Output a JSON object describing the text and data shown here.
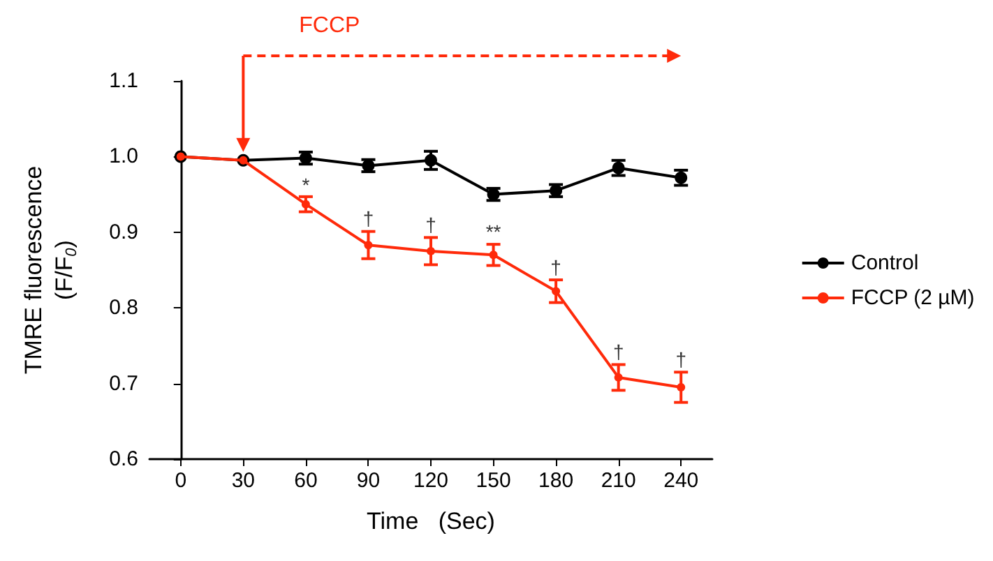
{
  "chart_data": {
    "type": "line",
    "xlabel": "Time   (Sec)",
    "ylabel": "TMRE fluorescence\n(F/F$_{0}$)",
    "x": [
      0,
      30,
      60,
      90,
      120,
      150,
      180,
      210,
      240
    ],
    "series": [
      {
        "name": "Control",
        "color": "#000000",
        "values": [
          1.0,
          0.995,
          0.998,
          0.988,
          0.995,
          0.95,
          0.955,
          0.985,
          0.972
        ],
        "errors": [
          null,
          null,
          0.008,
          0.008,
          0.012,
          0.008,
          0.008,
          0.01,
          0.01
        ]
      },
      {
        "name": "FCCP (2 µM)",
        "color": "#ff2a0a",
        "values": [
          1.0,
          0.995,
          0.937,
          0.883,
          0.875,
          0.87,
          0.822,
          0.708,
          0.695
        ],
        "errors": [
          null,
          null,
          0.01,
          0.018,
          0.018,
          0.014,
          0.015,
          0.017,
          0.02
        ]
      }
    ],
    "xlim": [
      -15,
      255
    ],
    "xticks": [
      0,
      30,
      60,
      90,
      120,
      150,
      180,
      210,
      240
    ],
    "ylim": [
      0.6,
      1.1
    ],
    "yticks": [
      0.6,
      0.7,
      0.8,
      0.9,
      {
        "value": 1,
        "label": "1.0"
      },
      1.1
    ],
    "ref_lines": [
      {
        "axis": "x",
        "value": 30,
        "label": "FCCP",
        "color": "#ff2a0a"
      }
    ],
    "annotations": [
      {
        "text": "*",
        "x": 60,
        "y": 0.95
      },
      {
        "text": "†",
        "x": 90,
        "y": 0.905
      },
      {
        "text": "†",
        "x": 120,
        "y": 0.897
      },
      {
        "text": "**",
        "x": 150,
        "y": 0.888
      },
      {
        "text": "†",
        "x": 180,
        "y": 0.841
      },
      {
        "text": "†",
        "x": 210,
        "y": 0.729
      },
      {
        "text": "†",
        "x": 240,
        "y": 0.719
      }
    ],
    "marker": "circle",
    "line_style": "solid",
    "legend": "right",
    "grid": false
  }
}
